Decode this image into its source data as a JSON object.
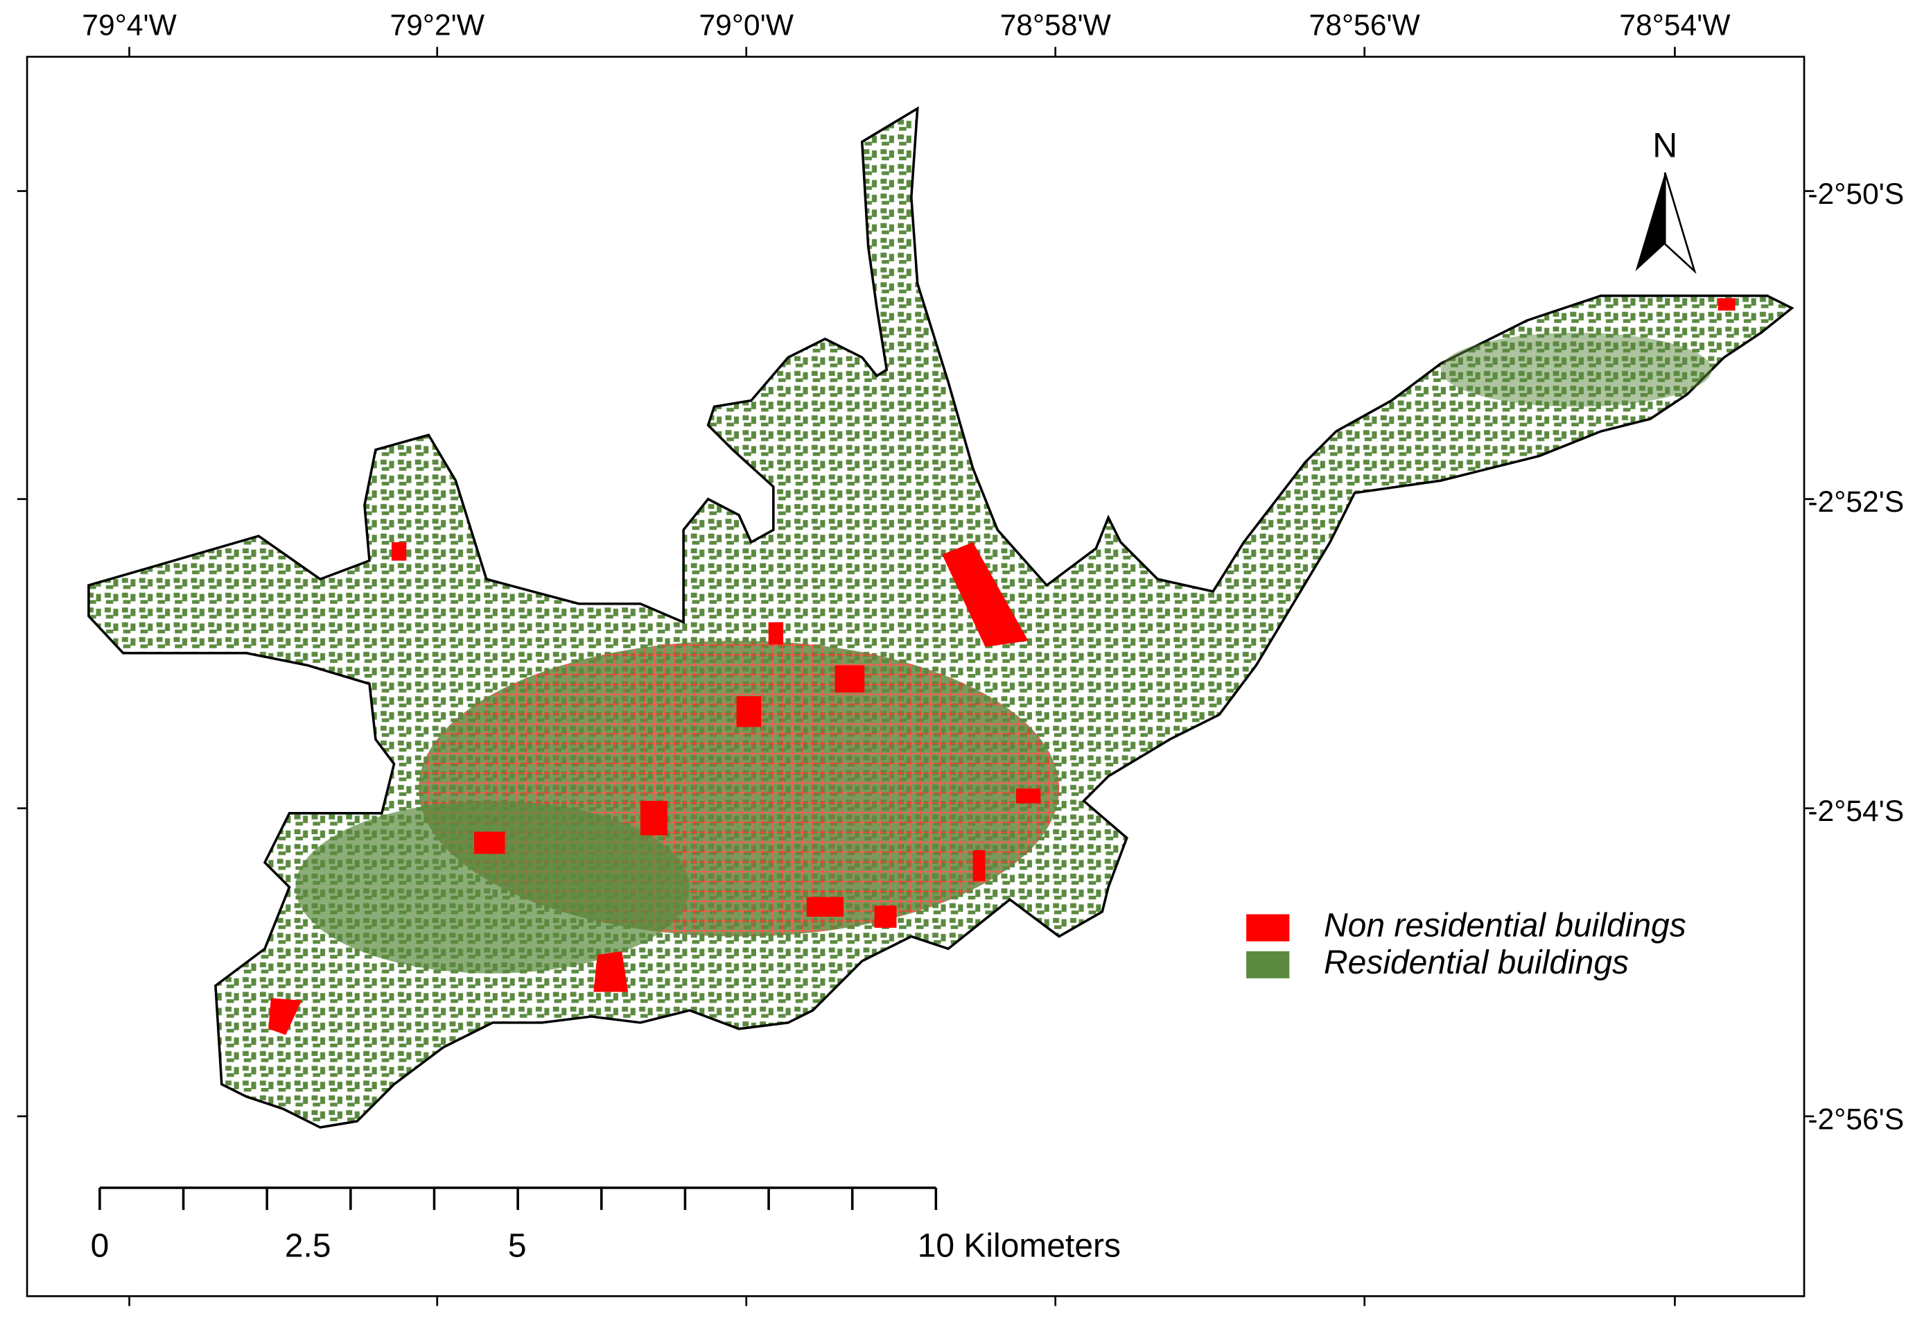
{
  "map": {
    "longitude_labels": [
      "79°4'W",
      "79°2'W",
      "79°0'W",
      "78°58'W",
      "78°56'W",
      "78°54'W"
    ],
    "latitude_labels": [
      "-2°50'S",
      "-2°52'S",
      "-2°54'S",
      "-2°56'S"
    ],
    "north_label": "N",
    "legend": [
      {
        "label": "Non residential buildings",
        "color": "#ff0000"
      },
      {
        "label": "Residential buildings",
        "color": "#5b8a3f"
      }
    ],
    "scale_bar": {
      "labels": [
        "0",
        "2.5",
        "5",
        "10 Kilometers"
      ]
    }
  }
}
